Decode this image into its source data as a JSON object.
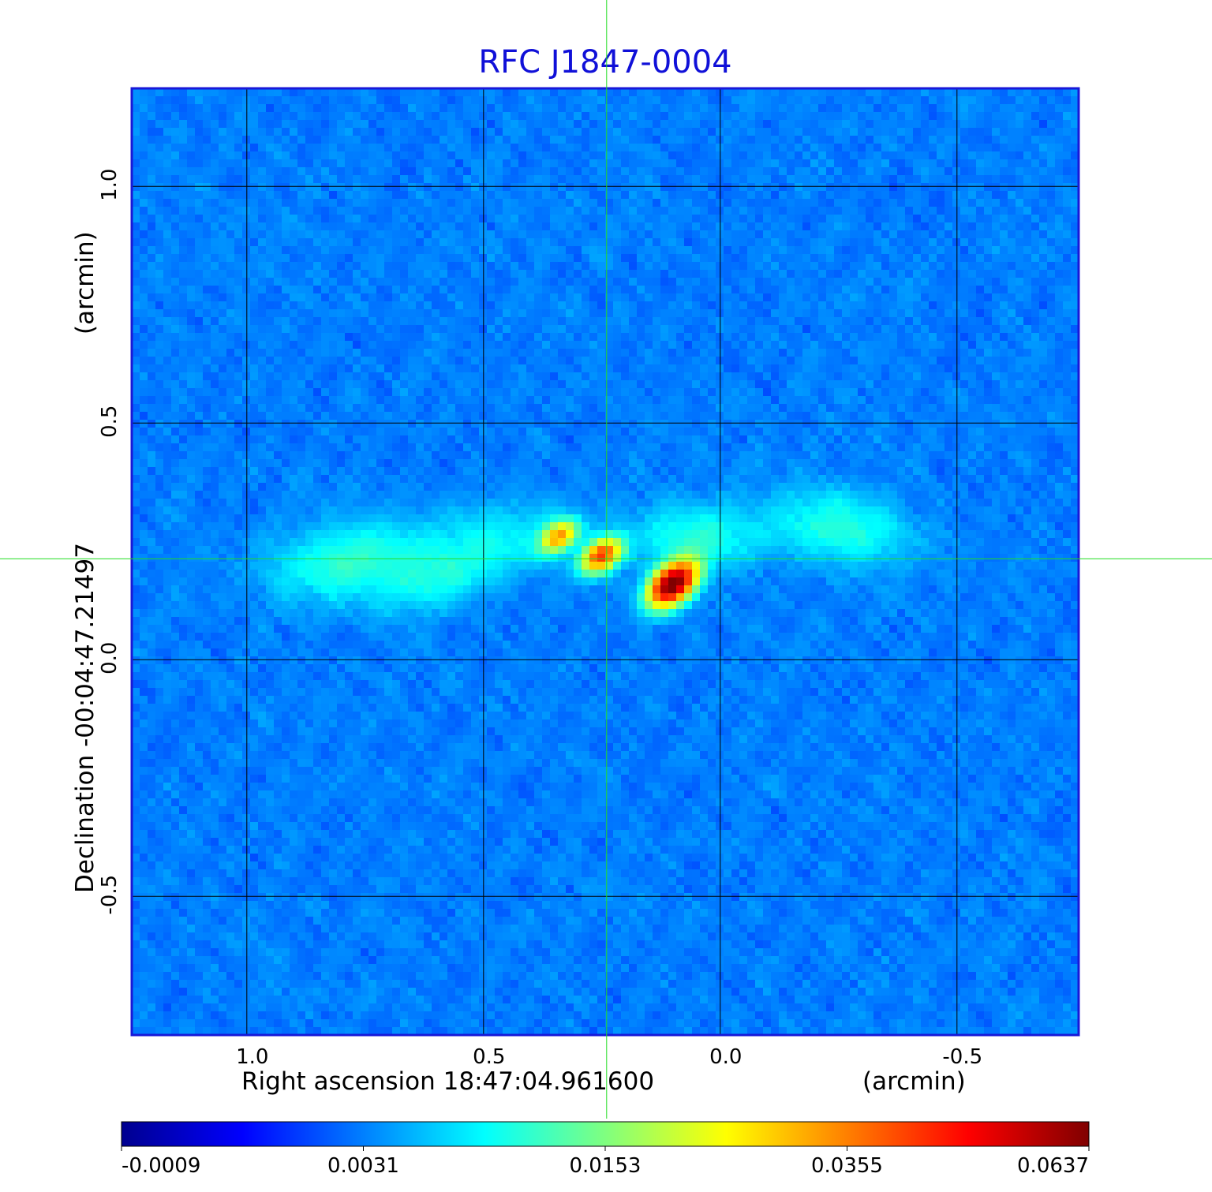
{
  "chart_data": {
    "type": "heatmap",
    "title": "RFC J1847-0004",
    "xlabel": "Right ascension  18:47:04.961600",
    "xunit": "(arcmin)",
    "ylabel": "Declination  -00:04:47.21497",
    "yunit": "(arcmin)",
    "x_range": [
      1.243,
      -0.757
    ],
    "y_range": [
      -0.793,
      1.207
    ],
    "x_reversed": true,
    "x_ticks": [
      {
        "value": 1.0,
        "label": "1.0"
      },
      {
        "value": 0.5,
        "label": "0.5"
      },
      {
        "value": 0.0,
        "label": "0.0"
      },
      {
        "value": -0.5,
        "label": "-0.5"
      }
    ],
    "y_ticks": [
      {
        "value": 1.0,
        "label": "1.0"
      },
      {
        "value": 0.5,
        "label": "0.5"
      },
      {
        "value": 0.0,
        "label": "0.0"
      },
      {
        "value": -0.5,
        "label": "-0.5"
      }
    ],
    "grid": true,
    "crosshair": {
      "x": 0.24,
      "y": 0.213,
      "color": "#22dd22"
    },
    "colormap": "jet",
    "colorbar": {
      "placement": "bottom",
      "ticks": [
        "-0.0009",
        "0.0031",
        "0.0153",
        "0.0355",
        "0.0637"
      ],
      "min": -0.0009,
      "max": 0.0637
    },
    "background_level": 0.0031,
    "sources": [
      {
        "x": 0.34,
        "y": 0.26,
        "peak": 0.028,
        "sigma_major": 0.028,
        "sigma_minor": 0.018,
        "pa_deg": -35
      },
      {
        "x": 0.25,
        "y": 0.22,
        "peak": 0.04,
        "sigma_major": 0.03,
        "sigma_minor": 0.02,
        "pa_deg": -35
      },
      {
        "x": 0.1,
        "y": 0.16,
        "peak": 0.0637,
        "sigma_major": 0.038,
        "sigma_minor": 0.024,
        "pa_deg": -40
      }
    ],
    "diffuse_emission": [
      {
        "x": 0.78,
        "y": 0.21,
        "peak": 0.0075,
        "sigma_major": 0.11,
        "sigma_minor": 0.055,
        "pa_deg": -10
      },
      {
        "x": 0.47,
        "y": 0.25,
        "peak": 0.005,
        "sigma_major": 0.12,
        "sigma_minor": 0.05,
        "pa_deg": -10
      },
      {
        "x": 0.05,
        "y": 0.26,
        "peak": 0.007,
        "sigma_major": 0.09,
        "sigma_minor": 0.045,
        "pa_deg": 0
      },
      {
        "x": -0.25,
        "y": 0.28,
        "peak": 0.007,
        "sigma_major": 0.1,
        "sigma_minor": 0.05,
        "pa_deg": 10
      },
      {
        "x": 0.6,
        "y": 0.16,
        "peak": 0.0045,
        "sigma_major": 0.08,
        "sigma_minor": 0.04,
        "pa_deg": -20
      }
    ]
  }
}
